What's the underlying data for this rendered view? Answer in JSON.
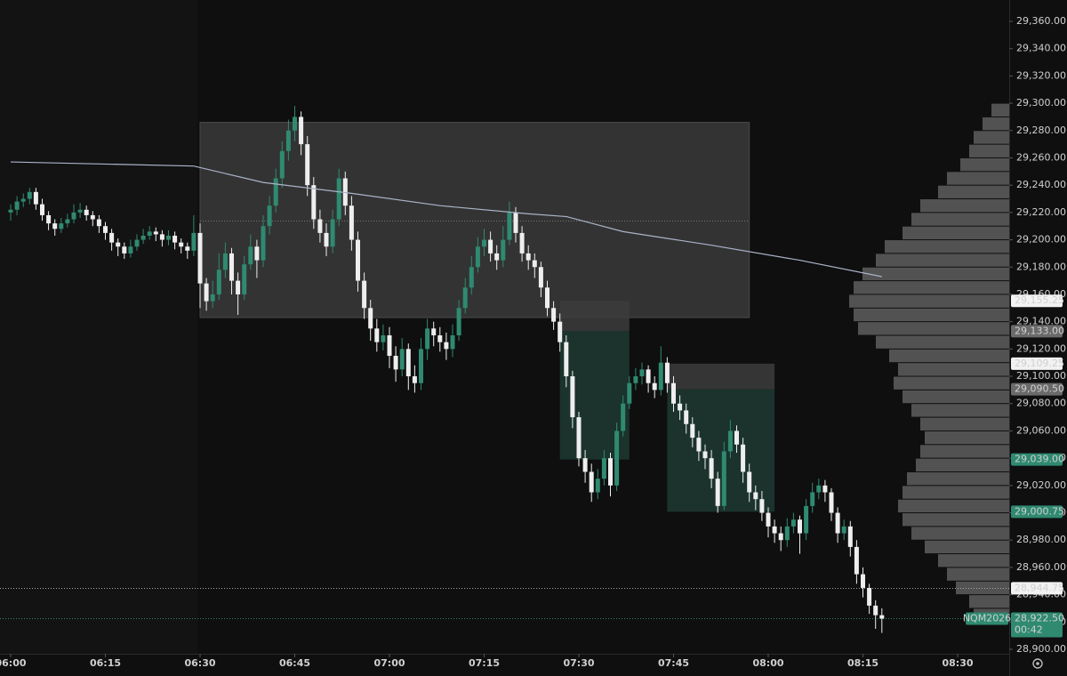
{
  "chart_data": {
    "type": "candlestick",
    "symbol": "NQM2026",
    "countdown": "00:42",
    "up_color": "#2f8a70",
    "down_color": "#eeeeee",
    "ylim": [
      28900,
      29360
    ],
    "yticks": [
      {
        "value": 28900,
        "label": "28,900.00"
      },
      {
        "value": 28920,
        "label": "28,920.00"
      },
      {
        "value": 28940,
        "label": "28,940.00"
      },
      {
        "value": 28960,
        "label": "28,960.00"
      },
      {
        "value": 28980,
        "label": "28,980.00"
      },
      {
        "value": 29000,
        "label": "29,000.00"
      },
      {
        "value": 29020,
        "label": "29,020.00"
      },
      {
        "value": 29040,
        "label": "29,040.00"
      },
      {
        "value": 29060,
        "label": "29,060.00"
      },
      {
        "value": 29080,
        "label": "29,080.00"
      },
      {
        "value": 29100,
        "label": "29,100.00"
      },
      {
        "value": 29120,
        "label": "29,120.00"
      },
      {
        "value": 29140,
        "label": "29,140.00"
      },
      {
        "value": 29160,
        "label": "29,160.00"
      },
      {
        "value": 29180,
        "label": "29,180.00"
      },
      {
        "value": 29200,
        "label": "29,200.00"
      },
      {
        "value": 29220,
        "label": "29,220.00"
      },
      {
        "value": 29240,
        "label": "29,240.00"
      },
      {
        "value": 29260,
        "label": "29,260.00"
      },
      {
        "value": 29280,
        "label": "29,280.00"
      },
      {
        "value": 29300,
        "label": "29,300.00"
      },
      {
        "value": 29320,
        "label": "29,320.00"
      },
      {
        "value": 29340,
        "label": "29,340.00"
      },
      {
        "value": 29360,
        "label": "29,360.00"
      }
    ],
    "xticks": [
      "06:00",
      "06:15",
      "06:30",
      "06:45",
      "07:00",
      "07:15",
      "07:30",
      "07:45",
      "08:00",
      "08:15",
      "08:30"
    ],
    "x": [
      "06:00",
      "06:01",
      "06:02",
      "06:03",
      "06:04",
      "06:05",
      "06:06",
      "06:07",
      "06:08",
      "06:09",
      "06:10",
      "06:11",
      "06:12",
      "06:13",
      "06:14",
      "06:15",
      "06:16",
      "06:17",
      "06:18",
      "06:19",
      "06:20",
      "06:21",
      "06:22",
      "06:23",
      "06:24",
      "06:25",
      "06:26",
      "06:27",
      "06:28",
      "06:29",
      "06:30",
      "06:31",
      "06:32",
      "06:33",
      "06:34",
      "06:35",
      "06:36",
      "06:37",
      "06:38",
      "06:39",
      "06:40",
      "06:41",
      "06:42",
      "06:43",
      "06:44",
      "06:45",
      "06:46",
      "06:47",
      "06:48",
      "06:49",
      "06:50",
      "06:51",
      "06:52",
      "06:53",
      "06:54",
      "06:55",
      "06:56",
      "06:57",
      "06:58",
      "06:59",
      "07:00",
      "07:01",
      "07:02",
      "07:03",
      "07:04",
      "07:05",
      "07:06",
      "07:07",
      "07:08",
      "07:09",
      "07:10",
      "07:11",
      "07:12",
      "07:13",
      "07:14",
      "07:15",
      "07:16",
      "07:17",
      "07:18",
      "07:19",
      "07:20",
      "07:21",
      "07:22",
      "07:23",
      "07:24",
      "07:25",
      "07:26",
      "07:27",
      "07:28",
      "07:29",
      "07:30",
      "07:31",
      "07:32",
      "07:33",
      "07:34",
      "07:35",
      "07:36",
      "07:37",
      "07:38",
      "07:39",
      "07:40",
      "07:41",
      "07:42",
      "07:43",
      "07:44",
      "07:45",
      "07:46",
      "07:47",
      "07:48",
      "07:49",
      "07:50",
      "07:51",
      "07:52",
      "07:53",
      "07:54",
      "07:55",
      "07:56",
      "07:57",
      "07:58",
      "07:59",
      "08:00",
      "08:01",
      "08:02",
      "08:03",
      "08:04",
      "08:05",
      "08:06",
      "08:07",
      "08:08",
      "08:09",
      "08:10",
      "08:11",
      "08:12",
      "08:13",
      "08:14",
      "08:15",
      "08:16",
      "08:17",
      "08:18"
    ],
    "open": [
      29220,
      29222,
      29228,
      29230,
      29235,
      29226,
      29218,
      29212,
      29208,
      29212,
      29215,
      29220,
      29222,
      29218,
      29215,
      29210,
      29205,
      29198,
      29195,
      29190,
      29195,
      29200,
      29203,
      29206,
      29204,
      29200,
      29203,
      29198,
      29195,
      29192,
      29205,
      29168,
      29155,
      29160,
      29178,
      29190,
      29170,
      29160,
      29182,
      29195,
      29185,
      29210,
      29225,
      29245,
      29265,
      29280,
      29290,
      29270,
      29240,
      29215,
      29205,
      29195,
      29215,
      29245,
      29225,
      29200,
      29170,
      29150,
      29135,
      29125,
      29130,
      29115,
      29105,
      29120,
      29100,
      29095,
      29120,
      29135,
      29130,
      29125,
      29120,
      29130,
      29150,
      29165,
      29180,
      29195,
      29200,
      29190,
      29185,
      29200,
      29220,
      29205,
      29190,
      29185,
      29180,
      29165,
      29150,
      29140,
      29125,
      29100,
      29070,
      29040,
      29030,
      29015,
      29025,
      29040,
      29020,
      29060,
      29080,
      29095,
      29100,
      29105,
      29095,
      29090,
      29110,
      29095,
      29080,
      29075,
      29065,
      29055,
      29045,
      29040,
      29025,
      29005,
      29045,
      29060,
      29050,
      29030,
      29015,
      29010,
      29000,
      28990,
      28985,
      28980,
      28990,
      28995,
      28985,
      29005,
      29015,
      29020,
      29015,
      29000,
      28985,
      28990,
      28975,
      28955,
      28945,
      28932,
      28925
    ],
    "high": [
      29226,
      29232,
      29234,
      29238,
      29238,
      29230,
      29221,
      29215,
      29216,
      29219,
      29226,
      29227,
      29225,
      29221,
      29218,
      29213,
      29208,
      29201,
      29198,
      29200,
      29204,
      29208,
      29210,
      29209,
      29207,
      29207,
      29206,
      29201,
      29198,
      29218,
      29212,
      29172,
      29170,
      29190,
      29198,
      29194,
      29176,
      29188,
      29204,
      29200,
      29218,
      29232,
      29252,
      29272,
      29288,
      29298,
      29294,
      29276,
      29246,
      29222,
      29212,
      29222,
      29252,
      29250,
      29232,
      29206,
      29176,
      29156,
      29142,
      29138,
      29136,
      29122,
      29128,
      29124,
      29108,
      29128,
      29142,
      29140,
      29136,
      29132,
      29138,
      29156,
      29172,
      29188,
      29202,
      29208,
      29206,
      29196,
      29210,
      29228,
      29224,
      29210,
      29196,
      29190,
      29184,
      29170,
      29155,
      29146,
      29130,
      29104,
      29074,
      29046,
      29036,
      29032,
      29046,
      29044,
      29066,
      29086,
      29100,
      29106,
      29110,
      29108,
      29100,
      29122,
      29114,
      29100,
      29086,
      29080,
      29070,
      29060,
      29050,
      29046,
      29030,
      29052,
      29068,
      29064,
      29055,
      29036,
      29020,
      29016,
      29004,
      28995,
      28990,
      28996,
      29000,
      28998,
      29010,
      29022,
      29025,
      29024,
      29018,
      29004,
      28995,
      28994,
      28980,
      28960,
      28948,
      28936,
      28930
    ],
    "low": [
      29214,
      29218,
      29224,
      29226,
      29222,
      29214,
      29207,
      29203,
      29205,
      29209,
      29212,
      29216,
      29214,
      29210,
      29205,
      29200,
      29192,
      29188,
      29186,
      29187,
      29192,
      29197,
      29200,
      29199,
      29195,
      29196,
      29193,
      29190,
      29186,
      29188,
      29150,
      29148,
      29150,
      29156,
      29172,
      29160,
      29145,
      29156,
      29178,
      29172,
      29180,
      29204,
      29220,
      29238,
      29258,
      29272,
      29262,
      29232,
      29208,
      29198,
      29188,
      29190,
      29210,
      29218,
      29192,
      29162,
      29142,
      29126,
      29118,
      29119,
      29106,
      29096,
      29100,
      29090,
      29088,
      29090,
      29112,
      29122,
      29118,
      29112,
      29114,
      29126,
      29146,
      29160,
      29176,
      29188,
      29184,
      29178,
      29180,
      29196,
      29198,
      29184,
      29178,
      29172,
      29158,
      29144,
      29134,
      29118,
      29092,
      29062,
      29034,
      29022,
      29008,
      29010,
      29020,
      29012,
      29016,
      29056,
      29076,
      29090,
      29094,
      29088,
      29084,
      29086,
      29088,
      29074,
      29068,
      29058,
      29048,
      29038,
      29032,
      29018,
      29000,
      29002,
      29040,
      29044,
      29022,
      29008,
      29002,
      28994,
      28982,
      28978,
      28972,
      28975,
      28985,
      28970,
      28980,
      29000,
      29010,
      29008,
      28994,
      28978,
      28980,
      28968,
      28948,
      28938,
      28926,
      28915,
      28912
    ],
    "close": [
      29222,
      29228,
      29230,
      29235,
      29226,
      29218,
      29212,
      29208,
      29212,
      29215,
      29220,
      29222,
      29218,
      29215,
      29210,
      29205,
      29198,
      29195,
      29190,
      29195,
      29200,
      29203,
      29206,
      29204,
      29200,
      29203,
      29198,
      29195,
      29192,
      29205,
      29168,
      29155,
      29160,
      29178,
      29190,
      29170,
      29160,
      29182,
      29195,
      29185,
      29210,
      29225,
      29245,
      29265,
      29280,
      29290,
      29270,
      29240,
      29215,
      29205,
      29195,
      29215,
      29245,
      29225,
      29200,
      29170,
      29150,
      29135,
      29125,
      29130,
      29115,
      29105,
      29120,
      29100,
      29095,
      29120,
      29135,
      29130,
      29125,
      29120,
      29130,
      29150,
      29165,
      29180,
      29195,
      29200,
      29190,
      29185,
      29200,
      29220,
      29205,
      29190,
      29185,
      29180,
      29165,
      29150,
      29140,
      29125,
      29100,
      29070,
      29040,
      29030,
      29015,
      29025,
      29040,
      29020,
      29060,
      29080,
      29095,
      29100,
      29105,
      29095,
      29090,
      29110,
      29095,
      29080,
      29075,
      29065,
      29055,
      29045,
      29040,
      29025,
      29005,
      29045,
      29060,
      29050,
      29030,
      29015,
      29010,
      29000,
      28990,
      28985,
      28980,
      28990,
      28995,
      28985,
      29005,
      29015,
      29020,
      29015,
      29000,
      28985,
      28990,
      28975,
      28955,
      28945,
      28932,
      28925,
      28922.5
    ],
    "average_line": {
      "color": "#aab4c8",
      "x": [
        "06:00",
        "06:29",
        "06:40",
        "06:54",
        "07:08",
        "07:22",
        "07:28",
        "07:37",
        "07:51",
        "08:05",
        "08:18"
      ],
      "values": [
        29257,
        29254,
        29242,
        29234,
        29225,
        29219,
        29217,
        29206,
        29196,
        29185,
        29173
      ]
    },
    "zones": [
      {
        "start": "06:30",
        "end": "07:57",
        "top": 29286,
        "bottom": 29143,
        "color": "#3a3a3a"
      },
      {
        "start": "07:27",
        "end": "07:38",
        "top": 29155.25,
        "bottom": 29133,
        "color": "#3c3c3c"
      },
      {
        "start": "07:27",
        "end": "07:38",
        "top": 29133,
        "bottom": 29039,
        "color": "#1d3a31"
      },
      {
        "start": "07:44",
        "end": "08:01",
        "top": 29109.25,
        "bottom": 29090.5,
        "color": "#3c3c3c"
      },
      {
        "start": "07:44",
        "end": "08:01",
        "top": 29090.5,
        "bottom": 29000.75,
        "color": "#1d3a31"
      }
    ],
    "levels": [
      {
        "value": 29214,
        "color": "#777777"
      },
      {
        "value": 28944.75,
        "color": "#aaaaaa"
      },
      {
        "value": 28922.5,
        "color": "#2f8a70"
      }
    ],
    "volume_profile": {
      "color": "#5e5e5e",
      "step": 10,
      "prices": [
        28920,
        28930,
        28940,
        28950,
        28960,
        28970,
        28980,
        28990,
        29000,
        29010,
        29020,
        29030,
        29040,
        29050,
        29060,
        29070,
        29080,
        29090,
        29100,
        29110,
        29120,
        29130,
        29140,
        29150,
        29160,
        29170,
        29180,
        29190,
        29200,
        29210,
        29220,
        29230,
        29240,
        29250,
        29260,
        29270,
        29280,
        29290
      ],
      "volumes": [
        40,
        45,
        60,
        70,
        80,
        95,
        110,
        120,
        125,
        120,
        115,
        105,
        100,
        95,
        100,
        110,
        120,
        130,
        125,
        135,
        150,
        170,
        175,
        180,
        175,
        165,
        150,
        140,
        120,
        110,
        100,
        80,
        70,
        55,
        45,
        40,
        30,
        20
      ]
    },
    "tag_styles": {
      "white": {
        "fill": "#f2f2f2",
        "text": "#000000"
      },
      "grey": {
        "fill": "#6a6a6a",
        "text": "#ffffff"
      },
      "green": {
        "fill": "#2f8a70",
        "text": "#ffffff"
      }
    },
    "price_tags": [
      {
        "value": 29155.25,
        "label": "29,155.25",
        "style": "white"
      },
      {
        "value": 29133,
        "label": "29,133.00",
        "style": "grey"
      },
      {
        "value": 29109.25,
        "label": "29,109.25",
        "style": "white"
      },
      {
        "value": 29090.5,
        "label": "29,090.50",
        "style": "grey"
      },
      {
        "value": 29039,
        "label": "29,039.00",
        "style": "green"
      },
      {
        "value": 29000.75,
        "label": "29,000.75",
        "style": "green"
      },
      {
        "value": 28944.75,
        "label": "28,944.75",
        "style": "white"
      },
      {
        "value": 28922.5,
        "label": "28,922.50",
        "style": "green"
      }
    ]
  }
}
